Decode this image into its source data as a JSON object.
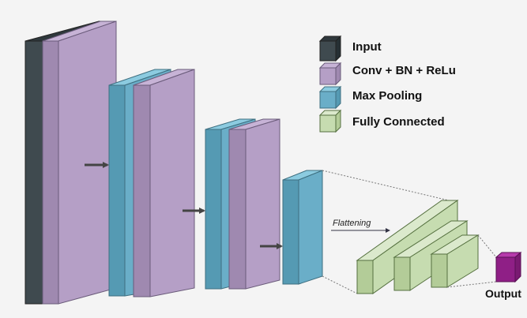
{
  "legend": {
    "input": "Input",
    "conv": "Conv + BN + ReLu",
    "pool": "Max Pooling",
    "fc": "Fully Connected"
  },
  "flattening_label": "Flattening",
  "output_label": "Output",
  "colors": {
    "input": "#3f4a4f",
    "conv": "#b59fc6",
    "pool": "#6aaec8",
    "fc": "#c6dcb0",
    "output": "#8f1f86",
    "arrow": "#444444",
    "background": "#f4f4f4"
  }
}
